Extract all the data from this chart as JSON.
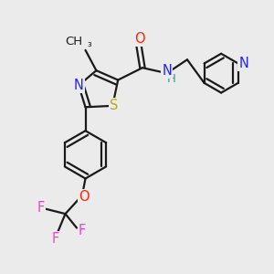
{
  "background_color": "#ebebeb",
  "bond_color": "#1a1a1a",
  "atom_colors": {
    "O": "#ff2200",
    "N": "#2222ff",
    "S": "#bbaa00",
    "F": "#ee44cc",
    "H": "#3a9a9a",
    "C": "#1a1a1a"
  },
  "font_size": 10.5,
  "lw": 1.6,
  "xlim": [
    0,
    10
  ],
  "ylim": [
    0,
    10
  ]
}
